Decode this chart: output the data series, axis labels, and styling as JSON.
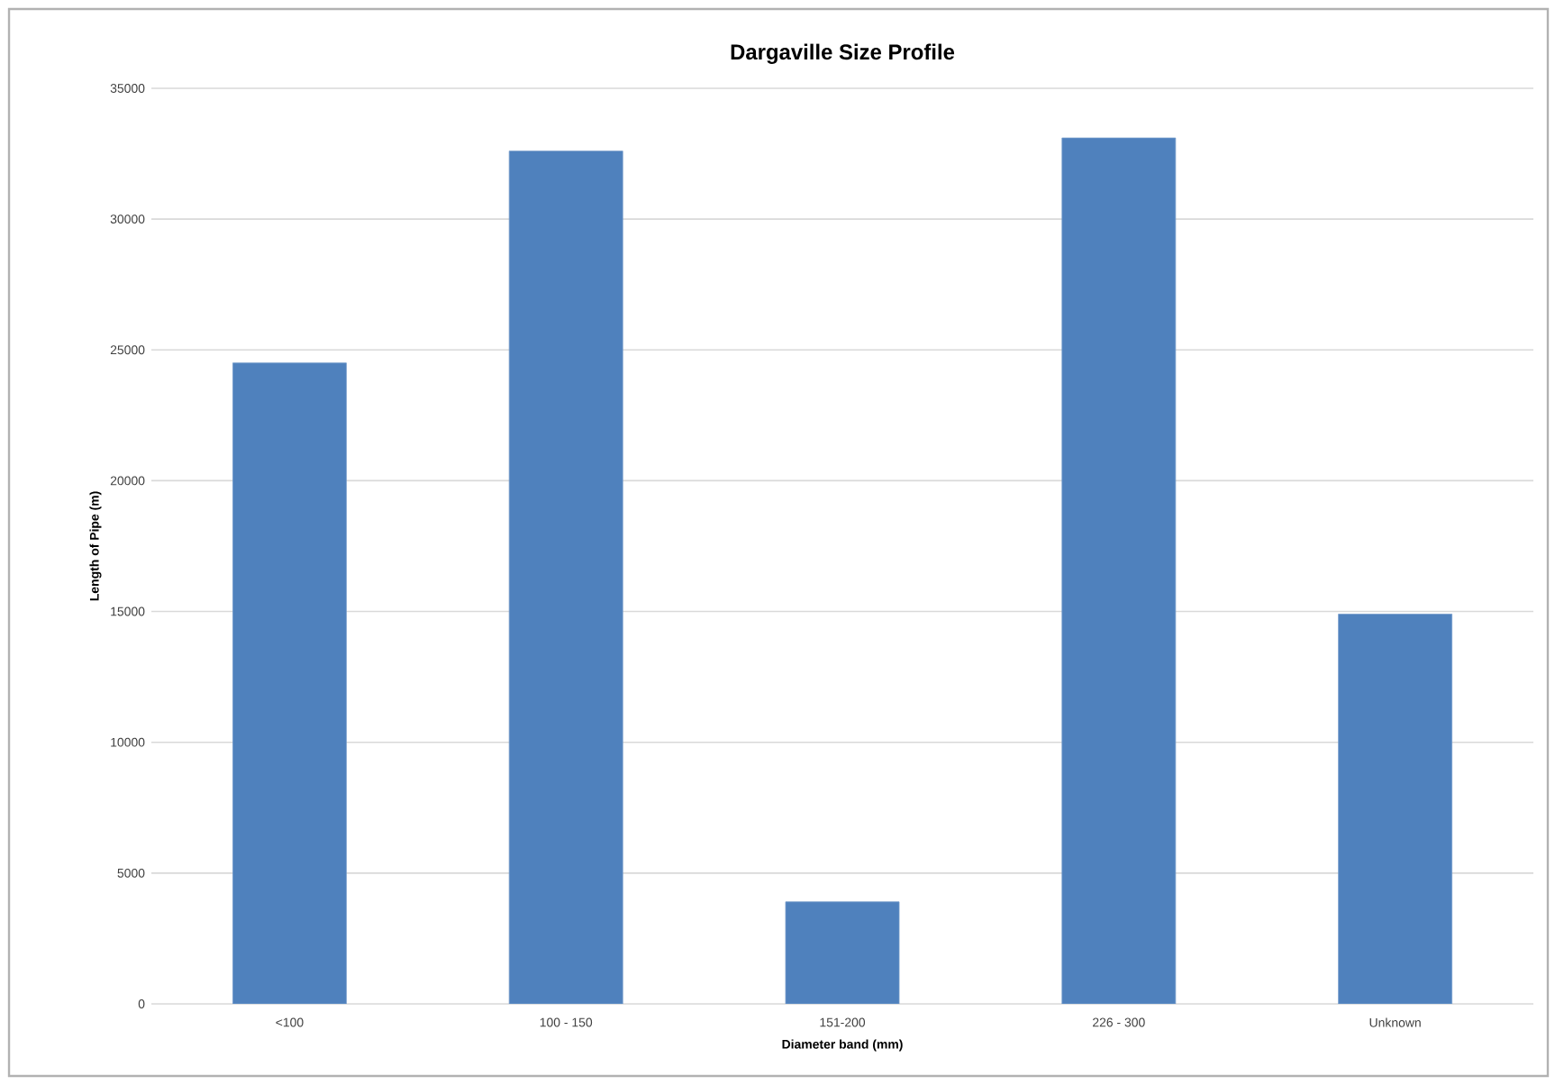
{
  "chart_data": {
    "type": "bar",
    "title": "Dargaville Size Profile",
    "xlabel": "Diameter band (mm)",
    "ylabel": "Length of Pipe (m)",
    "categories": [
      "<100",
      "100 - 150",
      "151-200",
      "226 - 300",
      "Unknown"
    ],
    "values": [
      24500,
      32600,
      3900,
      33100,
      14900
    ],
    "color": "#4f81bd",
    "ylim": [
      0,
      35000
    ],
    "yticks": [
      0,
      5000,
      10000,
      15000,
      20000,
      25000,
      30000,
      35000
    ],
    "grid": "y"
  }
}
